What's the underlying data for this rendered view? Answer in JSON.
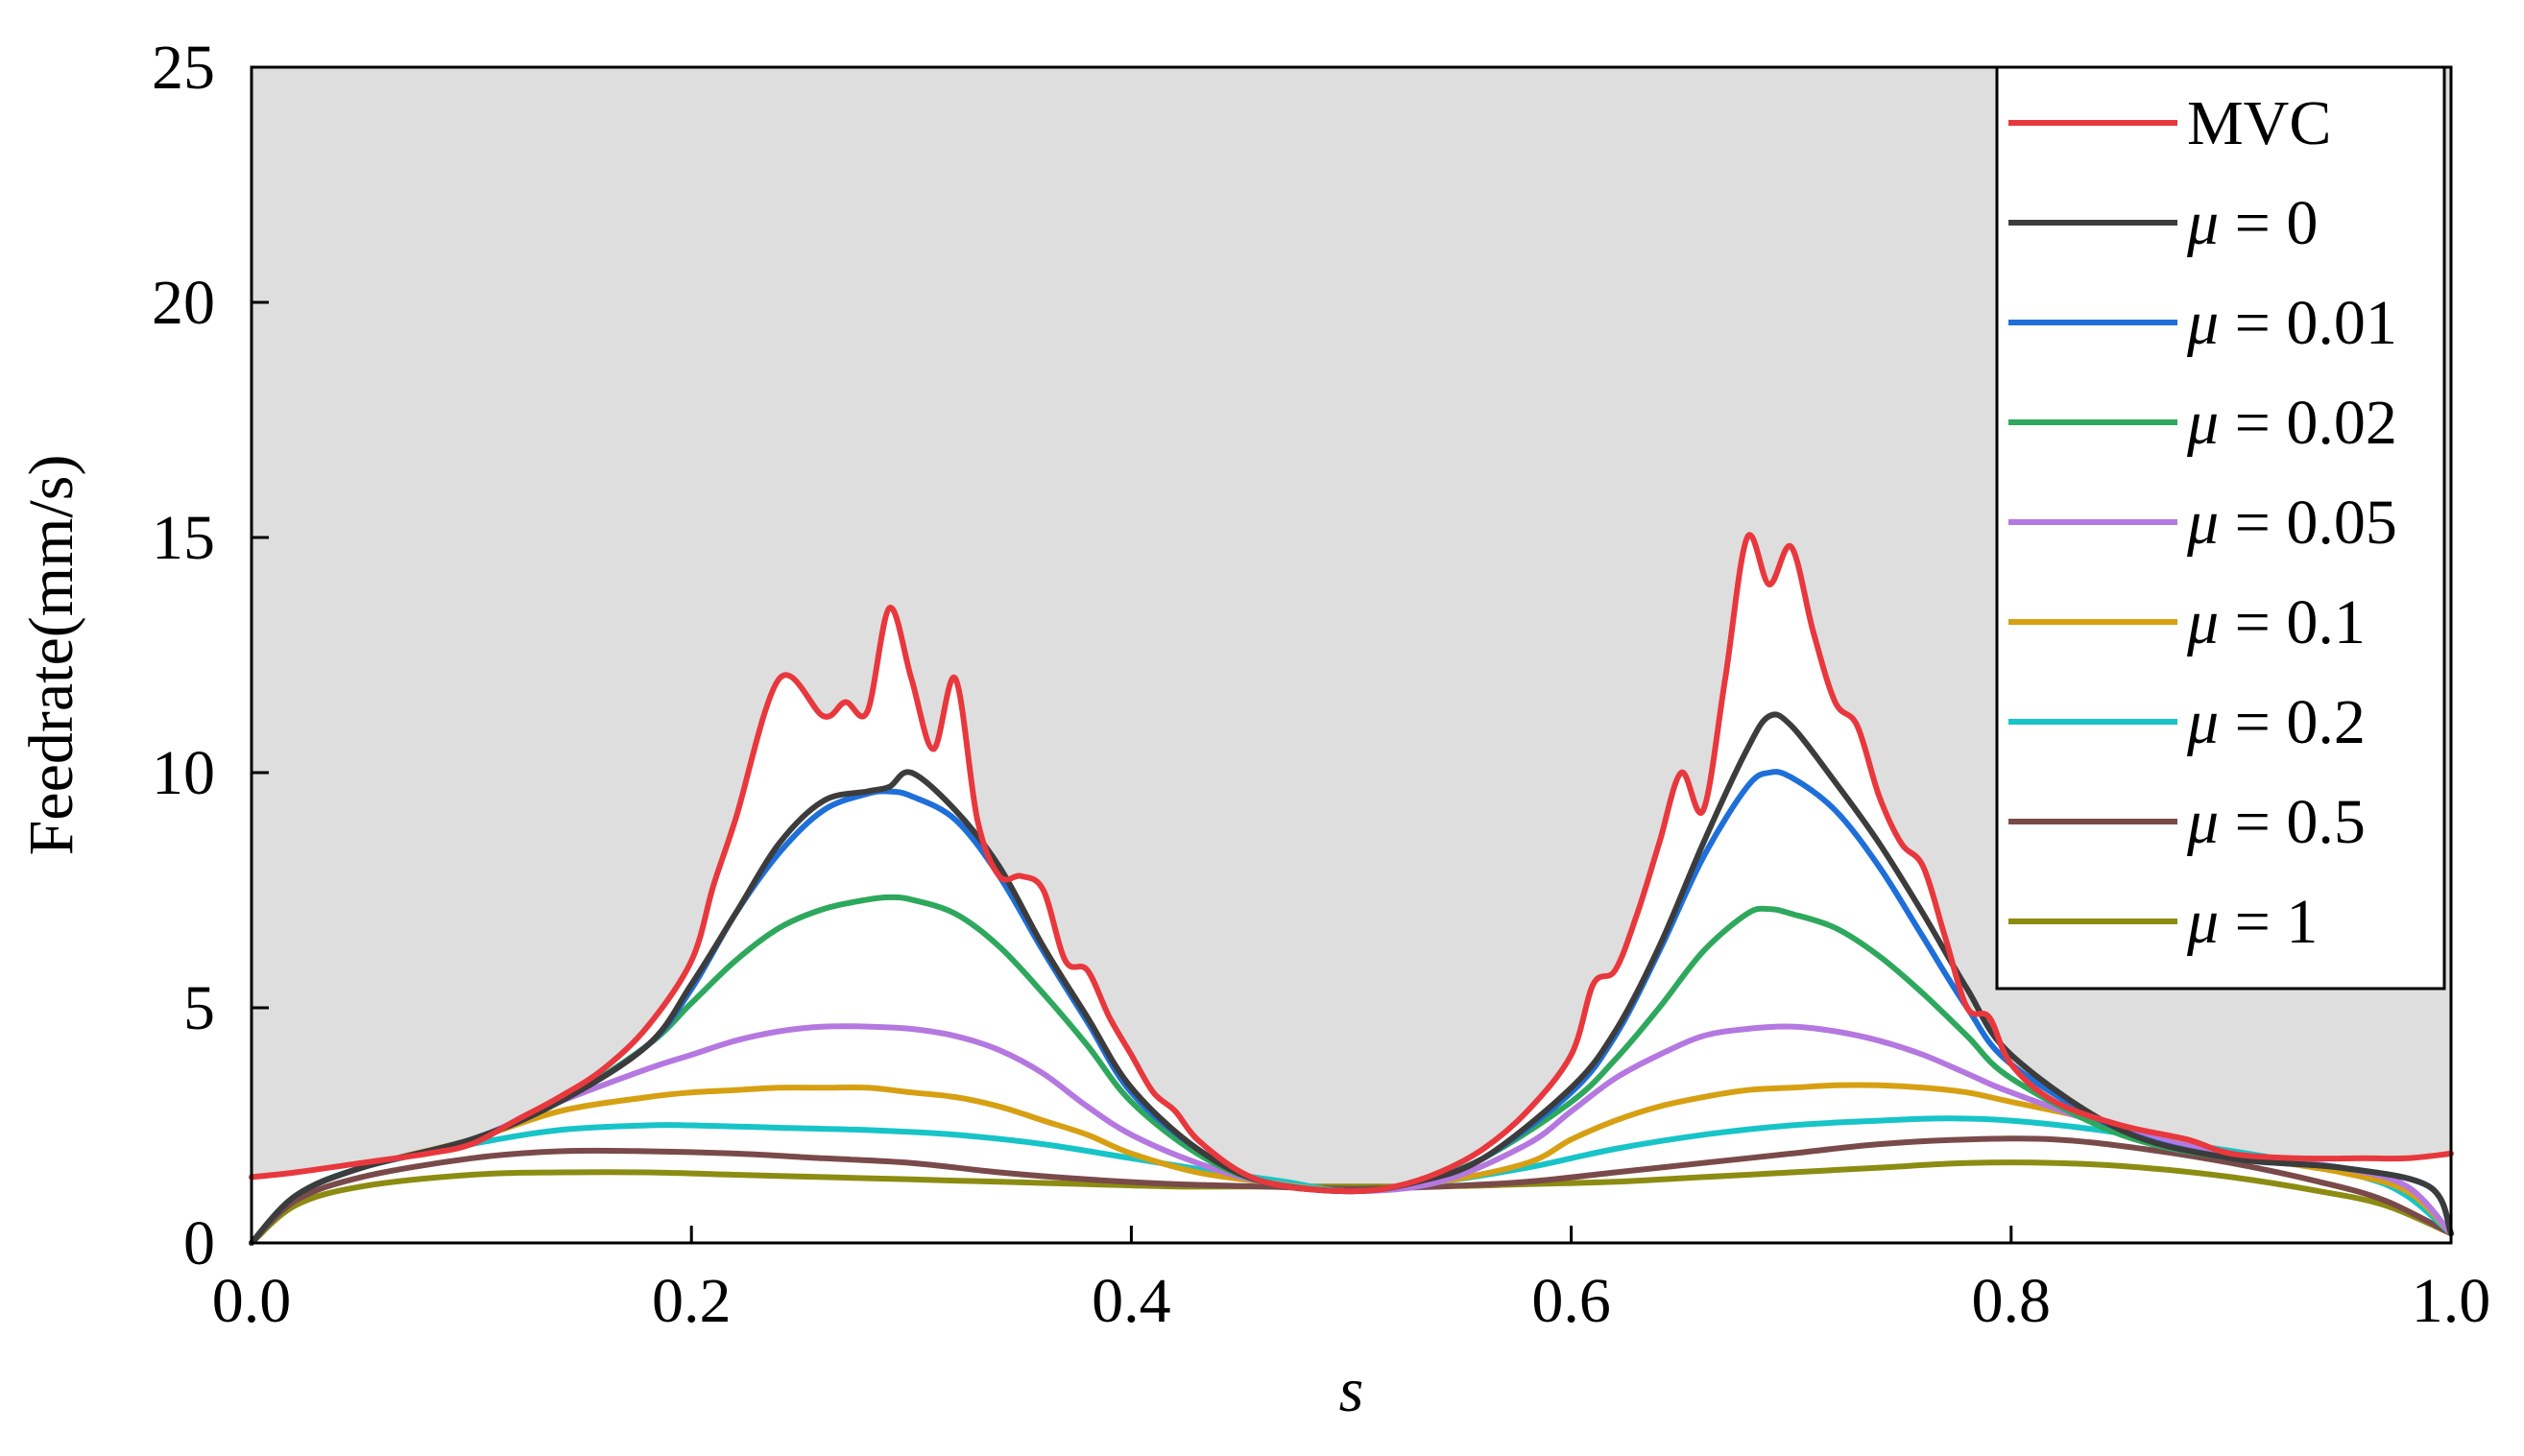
{
  "chart_data": {
    "type": "line",
    "title": "",
    "xlabel": "s",
    "ylabel": "Feedrate(mm/s)",
    "xlim": [
      0.0,
      1.0
    ],
    "ylim": [
      0,
      25
    ],
    "x_ticks": [
      "0.0",
      "0.2",
      "0.4",
      "0.6",
      "0.8",
      "1.0"
    ],
    "y_ticks": [
      "0",
      "5",
      "10",
      "15",
      "20",
      "25"
    ],
    "grid": false,
    "legend_position": "top-right",
    "shading": "gray region above the MVC curve",
    "shade_color": "#dedede",
    "series": [
      {
        "name": "MVC",
        "label_prefix": "",
        "label_value": "MVC",
        "color": "#e8383d",
        "x": [
          0.0,
          0.02,
          0.05,
          0.08,
          0.1,
          0.12,
          0.14,
          0.16,
          0.18,
          0.2,
          0.21,
          0.22,
          0.24,
          0.26,
          0.27,
          0.28,
          0.29,
          0.3,
          0.31,
          0.32,
          0.33,
          0.34,
          0.35,
          0.36,
          0.37,
          0.38,
          0.39,
          0.4,
          0.41,
          0.42,
          0.43,
          0.45,
          0.47,
          0.5,
          0.52,
          0.54,
          0.56,
          0.58,
          0.6,
          0.61,
          0.62,
          0.63,
          0.64,
          0.65,
          0.66,
          0.67,
          0.68,
          0.69,
          0.7,
          0.71,
          0.72,
          0.73,
          0.74,
          0.75,
          0.76,
          0.77,
          0.78,
          0.79,
          0.8,
          0.82,
          0.85,
          0.88,
          0.9,
          0.93,
          0.96,
          0.98,
          1.0
        ],
        "y": [
          1.4,
          1.5,
          1.7,
          1.9,
          2.1,
          2.6,
          3.1,
          3.7,
          4.6,
          6.0,
          7.6,
          9.0,
          12.0,
          11.2,
          11.5,
          11.3,
          13.5,
          12.0,
          10.5,
          12.0,
          9.0,
          7.8,
          7.8,
          7.5,
          6.0,
          5.8,
          4.8,
          4.0,
          3.2,
          2.8,
          2.2,
          1.5,
          1.2,
          1.1,
          1.2,
          1.5,
          2.0,
          2.8,
          4.0,
          5.5,
          5.8,
          7.0,
          8.5,
          10.0,
          9.2,
          12.0,
          15.0,
          14.0,
          14.8,
          13.0,
          11.5,
          11.0,
          9.5,
          8.5,
          8.0,
          6.5,
          5.0,
          4.8,
          3.8,
          3.0,
          2.5,
          2.2,
          1.9,
          1.8,
          1.8,
          1.8,
          1.9
        ]
      },
      {
        "name": "mu=0",
        "label_prefix": "μ",
        "label_value": " = 0",
        "color": "#3c3c3c",
        "x": [
          0.0,
          0.02,
          0.05,
          0.1,
          0.14,
          0.18,
          0.2,
          0.22,
          0.24,
          0.26,
          0.28,
          0.29,
          0.3,
          0.32,
          0.34,
          0.36,
          0.38,
          0.4,
          0.43,
          0.46,
          0.5,
          0.53,
          0.56,
          0.6,
          0.62,
          0.64,
          0.66,
          0.68,
          0.69,
          0.7,
          0.72,
          0.74,
          0.76,
          0.78,
          0.8,
          0.85,
          0.9,
          0.95,
          0.99,
          1.0
        ],
        "y": [
          0.0,
          1.0,
          1.6,
          2.2,
          3.0,
          4.2,
          5.5,
          7.0,
          8.5,
          9.4,
          9.6,
          9.7,
          10.0,
          9.2,
          8.0,
          6.3,
          4.8,
          3.3,
          2.0,
          1.3,
          1.1,
          1.3,
          1.8,
          3.3,
          4.5,
          6.3,
          8.5,
          10.5,
          11.2,
          11.0,
          9.8,
          8.5,
          7.0,
          5.4,
          4.0,
          2.4,
          1.8,
          1.6,
          1.2,
          0.2
        ]
      },
      {
        "name": "mu=0.01",
        "label_prefix": "μ",
        "label_value": " = 0.01",
        "color": "#1e6fd9",
        "x": [
          0.0,
          0.02,
          0.05,
          0.1,
          0.14,
          0.18,
          0.2,
          0.22,
          0.24,
          0.26,
          0.28,
          0.29,
          0.3,
          0.32,
          0.34,
          0.36,
          0.38,
          0.4,
          0.43,
          0.46,
          0.5,
          0.53,
          0.56,
          0.6,
          0.62,
          0.64,
          0.66,
          0.68,
          0.69,
          0.7,
          0.72,
          0.74,
          0.76,
          0.78,
          0.8,
          0.85,
          0.9,
          0.95,
          0.99,
          1.0
        ],
        "y": [
          0.0,
          1.0,
          1.6,
          2.2,
          3.0,
          4.2,
          5.4,
          7.0,
          8.3,
          9.2,
          9.55,
          9.6,
          9.5,
          9.0,
          7.8,
          6.2,
          4.7,
          3.2,
          2.0,
          1.3,
          1.1,
          1.3,
          1.8,
          3.2,
          4.4,
          6.2,
          8.2,
          9.7,
          10.0,
          9.9,
          9.2,
          8.0,
          6.5,
          5.0,
          3.8,
          2.4,
          1.8,
          1.6,
          1.2,
          0.2
        ]
      },
      {
        "name": "mu=0.02",
        "label_prefix": "μ",
        "label_value": " = 0.02",
        "color": "#2ea85c",
        "x": [
          0.0,
          0.02,
          0.05,
          0.1,
          0.14,
          0.18,
          0.2,
          0.22,
          0.24,
          0.26,
          0.28,
          0.29,
          0.3,
          0.32,
          0.34,
          0.36,
          0.38,
          0.4,
          0.43,
          0.46,
          0.5,
          0.53,
          0.56,
          0.6,
          0.62,
          0.64,
          0.66,
          0.68,
          0.69,
          0.7,
          0.72,
          0.74,
          0.76,
          0.78,
          0.8,
          0.85,
          0.9,
          0.95,
          0.99,
          1.0
        ],
        "y": [
          0.0,
          1.0,
          1.6,
          2.2,
          3.0,
          4.2,
          5.1,
          6.0,
          6.7,
          7.1,
          7.3,
          7.35,
          7.3,
          7.0,
          6.3,
          5.3,
          4.2,
          3.0,
          1.9,
          1.3,
          1.1,
          1.3,
          1.8,
          3.0,
          3.9,
          5.0,
          6.2,
          7.0,
          7.1,
          7.0,
          6.7,
          6.1,
          5.3,
          4.4,
          3.5,
          2.3,
          1.8,
          1.6,
          1.2,
          0.2
        ]
      },
      {
        "name": "mu=0.05",
        "label_prefix": "μ",
        "label_value": " = 0.05",
        "color": "#b478e0",
        "x": [
          0.0,
          0.02,
          0.05,
          0.1,
          0.14,
          0.18,
          0.2,
          0.22,
          0.24,
          0.26,
          0.28,
          0.3,
          0.32,
          0.34,
          0.36,
          0.38,
          0.4,
          0.43,
          0.46,
          0.5,
          0.54,
          0.58,
          0.6,
          0.62,
          0.64,
          0.66,
          0.68,
          0.7,
          0.72,
          0.74,
          0.76,
          0.78,
          0.8,
          0.85,
          0.9,
          0.95,
          0.98,
          1.0
        ],
        "y": [
          0.0,
          1.0,
          1.6,
          2.2,
          3.0,
          3.7,
          4.0,
          4.3,
          4.5,
          4.6,
          4.6,
          4.55,
          4.4,
          4.1,
          3.6,
          2.9,
          2.3,
          1.7,
          1.3,
          1.1,
          1.3,
          2.1,
          2.8,
          3.5,
          4.0,
          4.4,
          4.55,
          4.6,
          4.5,
          4.3,
          4.0,
          3.6,
          3.2,
          2.4,
          1.9,
          1.6,
          1.2,
          0.2
        ]
      },
      {
        "name": "mu=0.1",
        "label_prefix": "μ",
        "label_value": " = 0.1",
        "color": "#d6a012",
        "x": [
          0.0,
          0.02,
          0.05,
          0.1,
          0.14,
          0.18,
          0.2,
          0.22,
          0.24,
          0.26,
          0.28,
          0.3,
          0.32,
          0.34,
          0.36,
          0.38,
          0.4,
          0.43,
          0.46,
          0.5,
          0.54,
          0.58,
          0.6,
          0.62,
          0.64,
          0.66,
          0.68,
          0.7,
          0.72,
          0.74,
          0.76,
          0.78,
          0.8,
          0.85,
          0.9,
          0.95,
          0.98,
          1.0
        ],
        "y": [
          0.0,
          1.0,
          1.6,
          2.2,
          2.8,
          3.1,
          3.2,
          3.25,
          3.3,
          3.3,
          3.3,
          3.2,
          3.1,
          2.9,
          2.6,
          2.3,
          1.9,
          1.5,
          1.3,
          1.1,
          1.3,
          1.7,
          2.2,
          2.6,
          2.9,
          3.1,
          3.25,
          3.3,
          3.35,
          3.35,
          3.3,
          3.2,
          3.0,
          2.5,
          1.9,
          1.5,
          1.1,
          0.2
        ]
      },
      {
        "name": "mu=0.2",
        "label_prefix": "μ",
        "label_value": " = 0.2",
        "color": "#17c4c8",
        "x": [
          0.0,
          0.02,
          0.05,
          0.1,
          0.14,
          0.18,
          0.2,
          0.24,
          0.28,
          0.32,
          0.36,
          0.4,
          0.44,
          0.47,
          0.5,
          0.54,
          0.58,
          0.62,
          0.66,
          0.7,
          0.74,
          0.77,
          0.8,
          0.84,
          0.88,
          0.92,
          0.96,
          0.98,
          1.0
        ],
        "y": [
          0.0,
          1.0,
          1.6,
          2.1,
          2.4,
          2.5,
          2.5,
          2.45,
          2.4,
          2.3,
          2.1,
          1.8,
          1.5,
          1.3,
          1.1,
          1.3,
          1.6,
          2.0,
          2.3,
          2.5,
          2.6,
          2.65,
          2.6,
          2.4,
          2.1,
          1.8,
          1.4,
          1.0,
          0.2
        ]
      },
      {
        "name": "mu=0.5",
        "label_prefix": "μ",
        "label_value": " = 0.5",
        "color": "#7a4a4a",
        "x": [
          0.0,
          0.02,
          0.05,
          0.1,
          0.14,
          0.18,
          0.22,
          0.26,
          0.3,
          0.34,
          0.38,
          0.42,
          0.46,
          0.5,
          0.54,
          0.58,
          0.62,
          0.66,
          0.7,
          0.74,
          0.78,
          0.82,
          0.86,
          0.9,
          0.94,
          0.97,
          1.0
        ],
        "y": [
          0.0,
          0.9,
          1.4,
          1.8,
          1.95,
          1.95,
          1.9,
          1.8,
          1.7,
          1.5,
          1.35,
          1.25,
          1.2,
          1.15,
          1.2,
          1.3,
          1.5,
          1.7,
          1.9,
          2.1,
          2.2,
          2.2,
          2.0,
          1.7,
          1.3,
          0.9,
          0.2
        ]
      },
      {
        "name": "mu=1",
        "label_prefix": "μ",
        "label_value": " = 1",
        "color": "#8c8c12",
        "x": [
          0.0,
          0.02,
          0.05,
          0.1,
          0.14,
          0.18,
          0.22,
          0.26,
          0.3,
          0.34,
          0.38,
          0.42,
          0.46,
          0.5,
          0.54,
          0.58,
          0.62,
          0.66,
          0.7,
          0.74,
          0.78,
          0.82,
          0.86,
          0.9,
          0.94,
          0.97,
          1.0
        ],
        "y": [
          0.0,
          0.8,
          1.2,
          1.45,
          1.5,
          1.5,
          1.45,
          1.4,
          1.35,
          1.3,
          1.25,
          1.2,
          1.2,
          1.2,
          1.2,
          1.25,
          1.3,
          1.4,
          1.5,
          1.6,
          1.7,
          1.7,
          1.6,
          1.4,
          1.1,
          0.8,
          0.2
        ]
      }
    ]
  }
}
